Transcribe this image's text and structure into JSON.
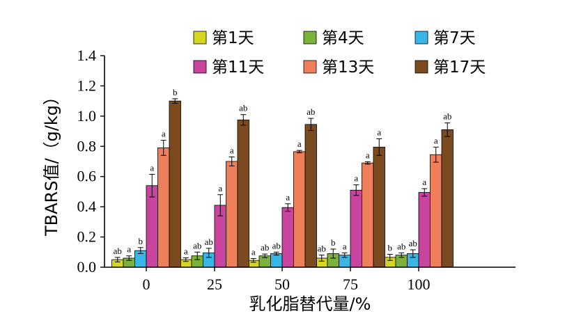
{
  "chart_data": {
    "type": "bar",
    "xlabel": "乳化脂替代量/%",
    "ylabel": "TBARS值/（g/kg）",
    "ylim": [
      0.0,
      1.4
    ],
    "yticks": [
      "0.0",
      "0.2",
      "0.4",
      "0.6",
      "0.8",
      "1.0",
      "1.2",
      "1.4"
    ],
    "categories": [
      "0",
      "25",
      "50",
      "75",
      "100"
    ],
    "legend_position": "top",
    "series": [
      {
        "name": "第1天",
        "color": "#d6d622",
        "values": [
          0.05,
          0.05,
          0.045,
          0.06,
          0.065
        ],
        "errors": [
          0.015,
          0.012,
          0.012,
          0.02,
          0.02
        ],
        "labels": [
          "ab",
          "a",
          "a",
          "ab",
          "b"
        ]
      },
      {
        "name": "第4天",
        "color": "#7ab23c",
        "values": [
          0.06,
          0.075,
          0.075,
          0.09,
          0.08
        ],
        "errors": [
          0.015,
          0.025,
          0.012,
          0.03,
          0.015
        ],
        "labels": [
          "a",
          "ab",
          "ab",
          "b",
          "ab"
        ]
      },
      {
        "name": "第7天",
        "color": "#38b6e6",
        "values": [
          0.11,
          0.095,
          0.09,
          0.08,
          0.09
        ],
        "errors": [
          0.02,
          0.03,
          0.01,
          0.015,
          0.025
        ],
        "labels": [
          "b",
          "ab",
          "ab",
          "a",
          "ab"
        ]
      },
      {
        "name": "第11天",
        "color": "#c8449e",
        "values": [
          0.54,
          0.41,
          0.395,
          0.51,
          0.495
        ],
        "errors": [
          0.075,
          0.07,
          0.025,
          0.035,
          0.025
        ],
        "labels": [
          "a",
          "a",
          "a",
          "a",
          "a"
        ]
      },
      {
        "name": "第13天",
        "color": "#ef7f5a",
        "values": [
          0.79,
          0.7,
          0.765,
          0.69,
          0.745
        ],
        "errors": [
          0.05,
          0.03,
          0.008,
          0.008,
          0.05
        ],
        "labels": [
          "a",
          "a",
          "a",
          "a",
          "a"
        ]
      },
      {
        "name": "第17天",
        "color": "#7b4a1e",
        "values": [
          1.1,
          0.975,
          0.945,
          0.795,
          0.91
        ],
        "errors": [
          0.015,
          0.035,
          0.04,
          0.055,
          0.045
        ],
        "labels": [
          "b",
          "ab",
          "ab",
          "a",
          "ab"
        ]
      }
    ]
  }
}
